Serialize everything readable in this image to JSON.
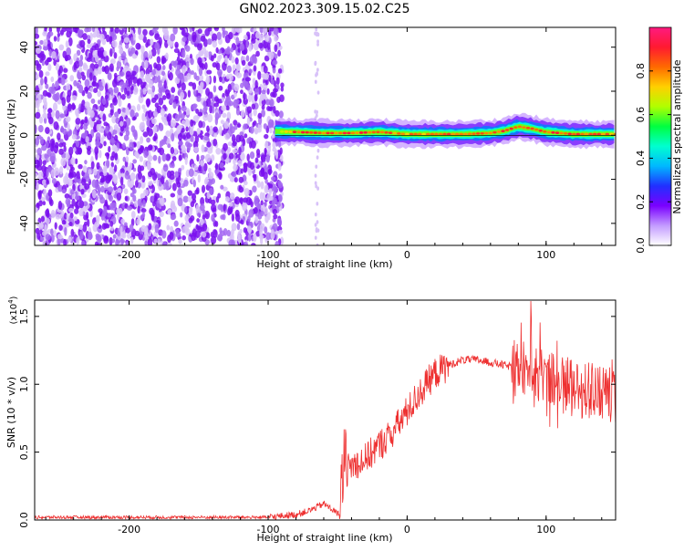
{
  "title": "GN02.2023.309.15.02.C25",
  "chart_data": [
    {
      "type": "heatmap",
      "xlabel": "Height of straight line (km)",
      "ylabel": "Frequency (Hz)",
      "xlim": [
        -268,
        150
      ],
      "ylim": [
        -50,
        49
      ],
      "xticks": [
        -200,
        -100,
        0,
        100
      ],
      "xtick_labels": [
        "-200",
        "-100",
        "0",
        "100"
      ],
      "yticks": [
        -40,
        -20,
        0,
        20,
        40
      ],
      "ytick_labels": [
        "-40",
        "-20",
        "0",
        "20",
        "40"
      ],
      "colorbar": {
        "label": "Normalized spectral amplitude",
        "range": [
          0,
          1
        ],
        "ticks": [
          0.0,
          0.2,
          0.4,
          0.6,
          0.8
        ],
        "tick_labels": [
          "0.0",
          "0.2",
          "0.4",
          "0.6",
          "0.8"
        ],
        "colors": [
          "#ffffff",
          "#c39bff",
          "#7a00ff",
          "#2030ff",
          "#00b8ff",
          "#00ffd0",
          "#00ff40",
          "#b0ff00",
          "#ffd000",
          "#ff6a00",
          "#ff1a30",
          "#ff1a80"
        ]
      },
      "noise_region_x": [
        -268,
        -95
      ],
      "signal_band": {
        "x": [
          -95,
          -80,
          -60,
          -40,
          -20,
          0,
          20,
          40,
          60,
          70,
          80,
          90,
          100,
          120,
          150
        ],
        "freq_center": [
          1.8,
          1.5,
          1,
          1,
          1.5,
          0.5,
          0.5,
          0.5,
          1,
          2,
          4,
          3,
          1.5,
          0.5,
          0.5
        ],
        "peak_amplitude": [
          0.5,
          0.85,
          0.85,
          0.85,
          0.85,
          0.8,
          0.8,
          0.85,
          0.85,
          0.85,
          0.85,
          0.85,
          0.85,
          0.85,
          0.8
        ]
      },
      "grid": false,
      "grid_label": "none"
    },
    {
      "type": "line",
      "xlabel": "Height of straight line (km)",
      "ylabel": "SNR (10 * v/v)",
      "y_multiplier_label": "(x10",
      "y_multiplier_exp": "4",
      "y_multiplier_close": ")",
      "xlim": [
        -268,
        150
      ],
      "ylim": [
        0,
        1.62
      ],
      "xticks": [
        -200,
        -100,
        0,
        100
      ],
      "xtick_labels": [
        "-200",
        "-100",
        "0",
        "100"
      ],
      "yticks": [
        0.0,
        0.5,
        1.0,
        1.5
      ],
      "ytick_labels": [
        "0.0",
        "0.5",
        "1.0",
        "1.5"
      ],
      "line_color": "#ee3030",
      "grid": false,
      "series": [
        {
          "values_x": [
            -268,
            -200,
            -150,
            -100,
            -80,
            -70,
            -60,
            -50,
            -47,
            -45,
            -40,
            -30,
            -20,
            -10,
            0,
            10,
            20,
            30,
            40,
            50,
            60,
            70,
            80,
            90,
            100,
            110,
            120,
            130,
            140,
            150
          ],
          "values_y": [
            0.02,
            0.02,
            0.02,
            0.02,
            0.04,
            0.07,
            0.12,
            0.05,
            0.0,
            0.35,
            0.4,
            0.45,
            0.55,
            0.65,
            0.8,
            0.95,
            1.08,
            1.14,
            1.18,
            1.18,
            1.16,
            1.14,
            1.12,
            1.1,
            1.05,
            1.0,
            0.97,
            0.95,
            0.93,
            0.9
          ]
        }
      ]
    }
  ]
}
